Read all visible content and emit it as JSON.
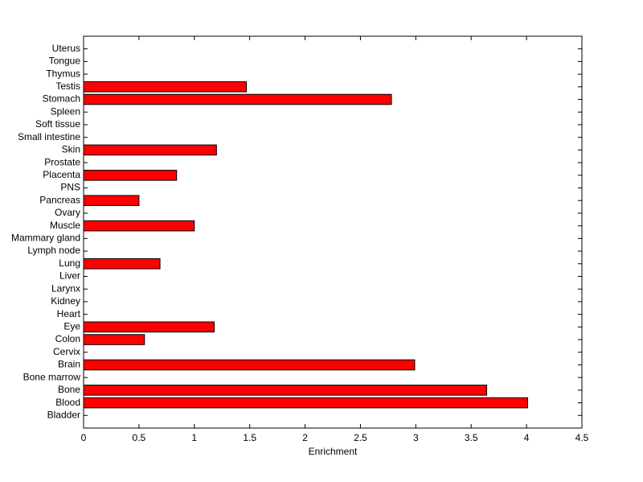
{
  "chart_data": {
    "type": "barh",
    "xlabel": "Enrichment",
    "categories": [
      "Bladder",
      "Blood",
      "Bone",
      "Bone marrow",
      "Brain",
      "Cervix",
      "Colon",
      "Eye",
      "Heart",
      "Kidney",
      "Larynx",
      "Liver",
      "Lung",
      "Lymph node",
      "Mammary gland",
      "Muscle",
      "Ovary",
      "Pancreas",
      "PNS",
      "Placenta",
      "Prostate",
      "Skin",
      "Small intestine",
      "Soft tissue",
      "Spleen",
      "Stomach",
      "Testis",
      "Thymus",
      "Tongue",
      "Uterus"
    ],
    "values": [
      0,
      4.01,
      3.64,
      0,
      2.99,
      0,
      0.55,
      1.18,
      0,
      0,
      0,
      0,
      0.69,
      0,
      0,
      1.0,
      0,
      0.5,
      0,
      0.84,
      0,
      1.2,
      0,
      0,
      0,
      2.78,
      1.47,
      0,
      0,
      0
    ],
    "color": "#ff0000",
    "xlim": [
      0,
      4.5
    ],
    "xticks": [
      0,
      0.5,
      1,
      1.5,
      2,
      2.5,
      3,
      3.5,
      4,
      4.5
    ],
    "grid": false
  }
}
